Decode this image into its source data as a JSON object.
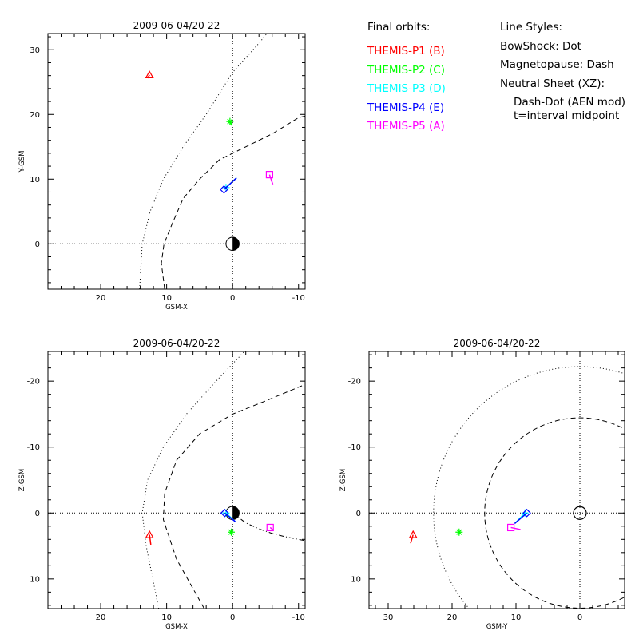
{
  "legend": {
    "orbits_title": "Final orbits:",
    "probes": [
      {
        "label": "THEMIS-P1 (B)",
        "color": "#ff0000",
        "symbol": "triangle"
      },
      {
        "label": "THEMIS-P2 (C)",
        "color": "#00ff00",
        "symbol": "asterisk"
      },
      {
        "label": "THEMIS-P3 (D)",
        "color": "#00ffff",
        "symbol": "plus"
      },
      {
        "label": "THEMIS-P4 (E)",
        "color": "#0000ff",
        "symbol": "diamond"
      },
      {
        "label": "THEMIS-P5 (A)",
        "color": "#ff00ff",
        "symbol": "square"
      }
    ],
    "styles_title": "Line Styles:",
    "bowshock": "BowShock: Dot",
    "magnetopause": "Magnetopause: Dash",
    "neutral_sheet": "Neutral Sheet (XZ):",
    "neutral_sheet_model": "Dash-Dot (AEN mod)",
    "midpoint_note": "t=interval midpoint"
  },
  "chart_data": [
    {
      "type": "scatter",
      "title": "2009-06-04/20-22",
      "xlabel": "GSM-X",
      "ylabel": "Y-GSM",
      "xlim": [
        28,
        -11
      ],
      "ylim": [
        32.5,
        -7
      ],
      "xticks": [
        20,
        10,
        0,
        -10
      ],
      "yticks": [
        0,
        10,
        20,
        30
      ],
      "earth": {
        "x": 0,
        "y": 0,
        "style": "half-dark"
      },
      "boundaries": [
        {
          "name": "bowshock",
          "style": "dot",
          "x": [
            14.1,
            13.7,
            12.5,
            10.5,
            7.5,
            4,
            0,
            -4,
            -8
          ],
          "y": [
            -7,
            0,
            5,
            10,
            15,
            20,
            26.5,
            31,
            36
          ]
        },
        {
          "name": "magnetopause",
          "style": "dash",
          "x": [
            10.3,
            10.8,
            10.4,
            9.2,
            7.5,
            5,
            2,
            -2,
            -6,
            -10,
            -12
          ],
          "y": [
            -7,
            -3,
            0,
            3,
            7,
            10,
            13,
            15,
            17,
            19.5,
            20
          ]
        }
      ],
      "series": [
        {
          "probe": 0,
          "x": [
            12.6
          ],
          "y": [
            26.1
          ],
          "track_x": [
            12.9,
            12.6
          ],
          "track_y": [
            25.6,
            26.1
          ]
        },
        {
          "probe": 1,
          "x": [
            0.4
          ],
          "y": [
            18.9
          ],
          "track_x": [
            0.1,
            0.4
          ],
          "track_y": [
            18.3,
            18.9
          ]
        },
        {
          "probe": 2,
          "x": [
            1.0
          ],
          "y": [
            8.7
          ],
          "track_x": [
            -0.6,
            1.0
          ],
          "track_y": [
            10.2,
            8.7
          ]
        },
        {
          "probe": 3,
          "x": [
            1.3
          ],
          "y": [
            8.4
          ],
          "track_x": [
            -0.6,
            1.3
          ],
          "track_y": [
            10.2,
            8.4
          ]
        },
        {
          "probe": 4,
          "x": [
            -5.6
          ],
          "y": [
            10.7
          ],
          "track_x": [
            -6.1,
            -5.6
          ],
          "track_y": [
            9.2,
            10.7
          ]
        }
      ]
    },
    {
      "type": "scatter",
      "title": "2009-06-04/20-22",
      "xlabel": "GSM-X",
      "ylabel": "Z-GSM",
      "xlim": [
        28,
        -11
      ],
      "ylim": [
        -24.5,
        14.5
      ],
      "xticks": [
        20,
        10,
        0,
        -10
      ],
      "yticks": [
        10,
        0,
        -10,
        -20
      ],
      "earth": {
        "x": 0,
        "y": 0,
        "style": "half-dark"
      },
      "boundaries": [
        {
          "name": "bowshock",
          "style": "dot",
          "x": [
            11.2,
            13.1,
            13.7,
            12.9,
            10.5,
            7,
            2.5,
            -1.8
          ],
          "y": [
            14.5,
            5,
            0,
            -5,
            -10,
            -15,
            -20,
            -24.5
          ]
        },
        {
          "name": "magnetopause",
          "style": "dash",
          "x": [
            4.3,
            8.5,
            10.5,
            10.3,
            8.5,
            5,
            0,
            -5,
            -11
          ],
          "y": [
            14.5,
            7,
            1,
            -3,
            -8,
            -12,
            -15,
            -17,
            -19.5
          ]
        },
        {
          "name": "neutral_sheet",
          "style": "dashdot",
          "x": [
            0,
            -2,
            -4,
            -6,
            -8,
            -11
          ],
          "y": [
            0,
            1.5,
            2.4,
            3.1,
            3.6,
            4.2
          ]
        }
      ],
      "series": [
        {
          "probe": 0,
          "x": [
            12.6
          ],
          "y": [
            3.3
          ],
          "track_x": [
            12.4,
            12.6
          ],
          "track_y": [
            4.8,
            3.3
          ]
        },
        {
          "probe": 1,
          "x": [
            0.2
          ],
          "y": [
            2.9
          ],
          "track_x": [
            0.2,
            0.2
          ],
          "track_y": [
            3.3,
            2.9
          ]
        },
        {
          "probe": 2,
          "x": [
            1.0
          ],
          "y": [
            0.0
          ],
          "track_x": [
            -0.4,
            1.0
          ],
          "track_y": [
            1.3,
            0.0
          ]
        },
        {
          "probe": 3,
          "x": [
            1.2
          ],
          "y": [
            0.0
          ],
          "track_x": [
            -0.4,
            1.2
          ],
          "track_y": [
            1.3,
            0.0
          ]
        },
        {
          "probe": 4,
          "x": [
            -5.7
          ],
          "y": [
            2.2
          ],
          "track_x": [
            -6.2,
            -5.7
          ],
          "track_y": [
            2.6,
            2.2
          ]
        }
      ]
    },
    {
      "type": "scatter",
      "title": "2009-06-04/20-22",
      "xlabel": "GSM-Y",
      "ylabel": "Z-GSM",
      "xlim": [
        33,
        -7
      ],
      "ylim": [
        -24.5,
        14.5
      ],
      "xticks": [
        30,
        20,
        10,
        0
      ],
      "yticks": [
        10,
        0,
        -10,
        -20
      ],
      "earth": {
        "x": 0,
        "y": 0,
        "style": "open"
      },
      "boundaries": [
        {
          "name": "bowshock",
          "style": "dot",
          "cx": 0,
          "cy": 0,
          "r": 22.9
        },
        {
          "name": "magnetopause",
          "style": "dash",
          "cx": 0,
          "cy": 0,
          "r": 14.9
        }
      ],
      "series": [
        {
          "probe": 0,
          "x": [
            26.1
          ],
          "y": [
            3.3
          ],
          "track_x": [
            26.5,
            26.1
          ],
          "track_y": [
            4.6,
            3.3
          ]
        },
        {
          "probe": 1,
          "x": [
            18.9
          ],
          "y": [
            2.9
          ],
          "track_x": [
            18.9,
            18.9
          ],
          "track_y": [
            2.9,
            2.9
          ]
        },
        {
          "probe": 2,
          "x": [
            8.6
          ],
          "y": [
            0.0
          ],
          "track_x": [
            10.2,
            8.6
          ],
          "track_y": [
            1.6,
            0.0
          ]
        },
        {
          "probe": 3,
          "x": [
            8.3
          ],
          "y": [
            0.0
          ],
          "track_x": [
            10.2,
            8.3
          ],
          "track_y": [
            1.6,
            0.0
          ]
        },
        {
          "probe": 4,
          "x": [
            10.8
          ],
          "y": [
            2.2
          ],
          "track_x": [
            9.3,
            10.8
          ],
          "track_y": [
            2.5,
            2.2
          ]
        }
      ]
    }
  ]
}
